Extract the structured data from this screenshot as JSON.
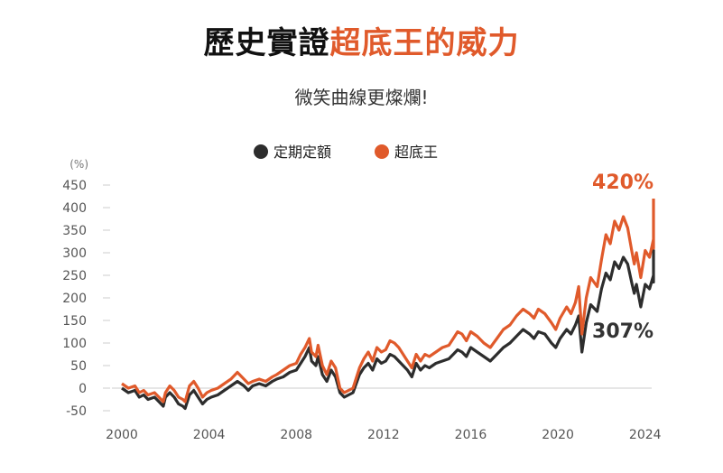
{
  "header": {
    "title_part1": "歷史實證",
    "title_part2": "超底王的威力",
    "subtitle": "微笑曲線更燦爛!"
  },
  "colors": {
    "series_dark": "#2d2d2d",
    "series_accent": "#e05a2b"
  },
  "chart_data": {
    "type": "line",
    "y_unit": "(%)",
    "ylim": [
      -50,
      450
    ],
    "y_ticks": [
      -50,
      0,
      50,
      100,
      150,
      200,
      250,
      300,
      350,
      400,
      450
    ],
    "x_ticks": [
      2000,
      2004,
      2008,
      2012,
      2016,
      2020,
      2024
    ],
    "xlim": [
      2000,
      2024.3
    ],
    "grid": false,
    "legend_position": "top-center",
    "series": [
      {
        "name": "定期定額",
        "end_label": "307%",
        "points": [
          [
            2000.0,
            0
          ],
          [
            2000.3,
            -10
          ],
          [
            2000.6,
            -5
          ],
          [
            2000.8,
            -20
          ],
          [
            2001.0,
            -15
          ],
          [
            2001.2,
            -25
          ],
          [
            2001.5,
            -20
          ],
          [
            2001.7,
            -30
          ],
          [
            2001.9,
            -40
          ],
          [
            2002.0,
            -20
          ],
          [
            2002.2,
            -10
          ],
          [
            2002.4,
            -20
          ],
          [
            2002.6,
            -35
          ],
          [
            2002.8,
            -40
          ],
          [
            2002.9,
            -45
          ],
          [
            2003.1,
            -15
          ],
          [
            2003.3,
            -5
          ],
          [
            2003.5,
            -20
          ],
          [
            2003.7,
            -35
          ],
          [
            2003.9,
            -25
          ],
          [
            2004.1,
            -20
          ],
          [
            2004.4,
            -15
          ],
          [
            2004.7,
            -5
          ],
          [
            2005.0,
            5
          ],
          [
            2005.3,
            15
          ],
          [
            2005.6,
            5
          ],
          [
            2005.8,
            -5
          ],
          [
            2006.0,
            5
          ],
          [
            2006.3,
            10
          ],
          [
            2006.6,
            5
          ],
          [
            2006.9,
            15
          ],
          [
            2007.1,
            20
          ],
          [
            2007.4,
            25
          ],
          [
            2007.7,
            35
          ],
          [
            2008.0,
            40
          ],
          [
            2008.2,
            55
          ],
          [
            2008.4,
            70
          ],
          [
            2008.6,
            90
          ],
          [
            2008.7,
            60
          ],
          [
            2008.9,
            50
          ],
          [
            2009.0,
            70
          ],
          [
            2009.2,
            30
          ],
          [
            2009.4,
            15
          ],
          [
            2009.6,
            40
          ],
          [
            2009.8,
            25
          ],
          [
            2010.0,
            -10
          ],
          [
            2010.2,
            -20
          ],
          [
            2010.4,
            -15
          ],
          [
            2010.6,
            -10
          ],
          [
            2010.9,
            30
          ],
          [
            2011.1,
            45
          ],
          [
            2011.3,
            55
          ],
          [
            2011.5,
            40
          ],
          [
            2011.7,
            65
          ],
          [
            2011.9,
            55
          ],
          [
            2012.1,
            60
          ],
          [
            2012.3,
            75
          ],
          [
            2012.5,
            70
          ],
          [
            2012.7,
            60
          ],
          [
            2012.9,
            50
          ],
          [
            2013.1,
            40
          ],
          [
            2013.3,
            25
          ],
          [
            2013.5,
            55
          ],
          [
            2013.7,
            40
          ],
          [
            2013.9,
            50
          ],
          [
            2014.1,
            45
          ],
          [
            2014.4,
            55
          ],
          [
            2014.7,
            60
          ],
          [
            2015.0,
            65
          ],
          [
            2015.2,
            75
          ],
          [
            2015.4,
            85
          ],
          [
            2015.6,
            80
          ],
          [
            2015.8,
            70
          ],
          [
            2016.0,
            90
          ],
          [
            2016.3,
            80
          ],
          [
            2016.6,
            70
          ],
          [
            2016.9,
            60
          ],
          [
            2017.2,
            75
          ],
          [
            2017.5,
            90
          ],
          [
            2017.8,
            100
          ],
          [
            2018.1,
            115
          ],
          [
            2018.4,
            130
          ],
          [
            2018.7,
            120
          ],
          [
            2018.9,
            110
          ],
          [
            2019.1,
            125
          ],
          [
            2019.4,
            120
          ],
          [
            2019.7,
            100
          ],
          [
            2019.9,
            90
          ],
          [
            2020.1,
            110
          ],
          [
            2020.4,
            130
          ],
          [
            2020.6,
            120
          ],
          [
            2020.8,
            140
          ],
          [
            2020.95,
            160
          ],
          [
            2021.1,
            80
          ],
          [
            2021.3,
            145
          ],
          [
            2021.5,
            185
          ],
          [
            2021.8,
            170
          ],
          [
            2022.0,
            220
          ],
          [
            2022.2,
            255
          ],
          [
            2022.4,
            240
          ],
          [
            2022.6,
            280
          ],
          [
            2022.8,
            265
          ],
          [
            2023.0,
            290
          ],
          [
            2023.2,
            275
          ],
          [
            2023.4,
            230
          ],
          [
            2023.5,
            210
          ],
          [
            2023.6,
            230
          ],
          [
            2023.8,
            180
          ],
          [
            2024.0,
            230
          ],
          [
            2024.2,
            220
          ],
          [
            2024.4,
            250
          ],
          [
            2024.6,
            235
          ],
          [
            2024.8,
            270
          ],
          [
            2025.0,
            255
          ],
          [
            2025.2,
            280
          ],
          [
            2025.4,
            270
          ],
          [
            2025.6,
            307
          ]
        ]
      },
      {
        "name": "超底王",
        "end_label": "420%",
        "points": [
          [
            2000.0,
            10
          ],
          [
            2000.3,
            0
          ],
          [
            2000.6,
            5
          ],
          [
            2000.8,
            -10
          ],
          [
            2001.0,
            -5
          ],
          [
            2001.2,
            -15
          ],
          [
            2001.5,
            -10
          ],
          [
            2001.7,
            -20
          ],
          [
            2001.9,
            -30
          ],
          [
            2002.0,
            -10
          ],
          [
            2002.2,
            5
          ],
          [
            2002.4,
            -5
          ],
          [
            2002.6,
            -20
          ],
          [
            2002.8,
            -25
          ],
          [
            2002.9,
            -30
          ],
          [
            2003.1,
            5
          ],
          [
            2003.3,
            15
          ],
          [
            2003.5,
            0
          ],
          [
            2003.7,
            -20
          ],
          [
            2003.9,
            -10
          ],
          [
            2004.1,
            -5
          ],
          [
            2004.4,
            0
          ],
          [
            2004.7,
            10
          ],
          [
            2005.0,
            20
          ],
          [
            2005.3,
            35
          ],
          [
            2005.6,
            20
          ],
          [
            2005.8,
            10
          ],
          [
            2006.0,
            15
          ],
          [
            2006.3,
            20
          ],
          [
            2006.6,
            15
          ],
          [
            2006.9,
            25
          ],
          [
            2007.1,
            30
          ],
          [
            2007.4,
            40
          ],
          [
            2007.7,
            50
          ],
          [
            2008.0,
            55
          ],
          [
            2008.2,
            75
          ],
          [
            2008.4,
            90
          ],
          [
            2008.6,
            110
          ],
          [
            2008.7,
            80
          ],
          [
            2008.9,
            70
          ],
          [
            2009.0,
            95
          ],
          [
            2009.2,
            50
          ],
          [
            2009.4,
            30
          ],
          [
            2009.6,
            60
          ],
          [
            2009.8,
            45
          ],
          [
            2010.0,
            0
          ],
          [
            2010.2,
            -10
          ],
          [
            2010.4,
            -5
          ],
          [
            2010.6,
            0
          ],
          [
            2010.9,
            45
          ],
          [
            2011.1,
            65
          ],
          [
            2011.3,
            80
          ],
          [
            2011.5,
            60
          ],
          [
            2011.7,
            90
          ],
          [
            2011.9,
            80
          ],
          [
            2012.1,
            85
          ],
          [
            2012.3,
            105
          ],
          [
            2012.5,
            100
          ],
          [
            2012.7,
            90
          ],
          [
            2012.9,
            75
          ],
          [
            2013.1,
            60
          ],
          [
            2013.3,
            45
          ],
          [
            2013.5,
            75
          ],
          [
            2013.7,
            60
          ],
          [
            2013.9,
            75
          ],
          [
            2014.1,
            70
          ],
          [
            2014.4,
            80
          ],
          [
            2014.7,
            90
          ],
          [
            2015.0,
            95
          ],
          [
            2015.2,
            110
          ],
          [
            2015.4,
            125
          ],
          [
            2015.6,
            120
          ],
          [
            2015.8,
            105
          ],
          [
            2016.0,
            125
          ],
          [
            2016.3,
            115
          ],
          [
            2016.6,
            100
          ],
          [
            2016.9,
            90
          ],
          [
            2017.2,
            110
          ],
          [
            2017.5,
            130
          ],
          [
            2017.8,
            140
          ],
          [
            2018.1,
            160
          ],
          [
            2018.4,
            175
          ],
          [
            2018.7,
            165
          ],
          [
            2018.9,
            155
          ],
          [
            2019.1,
            175
          ],
          [
            2019.4,
            165
          ],
          [
            2019.7,
            145
          ],
          [
            2019.9,
            130
          ],
          [
            2020.1,
            155
          ],
          [
            2020.4,
            180
          ],
          [
            2020.6,
            165
          ],
          [
            2020.8,
            190
          ],
          [
            2020.95,
            225
          ],
          [
            2021.1,
            120
          ],
          [
            2021.3,
            200
          ],
          [
            2021.5,
            245
          ],
          [
            2021.8,
            225
          ],
          [
            2022.0,
            285
          ],
          [
            2022.2,
            340
          ],
          [
            2022.4,
            320
          ],
          [
            2022.6,
            370
          ],
          [
            2022.8,
            350
          ],
          [
            2023.0,
            380
          ],
          [
            2023.2,
            355
          ],
          [
            2023.4,
            300
          ],
          [
            2023.5,
            275
          ],
          [
            2023.6,
            300
          ],
          [
            2023.8,
            245
          ],
          [
            2024.0,
            305
          ],
          [
            2024.2,
            290
          ],
          [
            2024.4,
            330
          ],
          [
            2024.6,
            310
          ],
          [
            2024.8,
            360
          ],
          [
            2025.0,
            340
          ],
          [
            2025.2,
            380
          ],
          [
            2025.4,
            370
          ],
          [
            2025.6,
            420
          ]
        ]
      }
    ]
  }
}
